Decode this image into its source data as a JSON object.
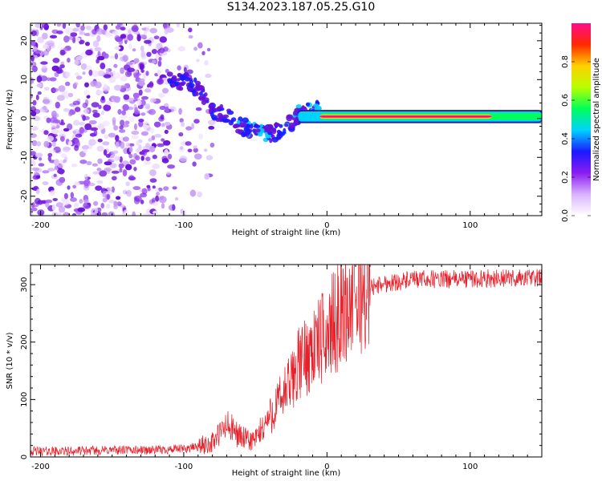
{
  "title": "S134.2023.187.05.25.G10",
  "chart_data": [
    {
      "type": "heatmap",
      "xlabel": "Height of straight line (km)",
      "ylabel": "Frequency (Hz)",
      "xlim": [
        -207,
        150
      ],
      "ylim": [
        -25,
        24.5
      ],
      "x_ticks": [
        -200,
        -100,
        0,
        100
      ],
      "y_ticks": [
        20,
        10,
        0,
        -10,
        -20
      ],
      "colorbar": {
        "label": "Normalized spectral amplitude",
        "range": [
          0,
          1
        ],
        "ticks": [
          0.0,
          0.2,
          0.4,
          0.6,
          0.8
        ],
        "colors": [
          "#ffffff",
          "#d9b3ff",
          "#8a1cf0",
          "#1a1aff",
          "#00d2ff",
          "#00ff5a",
          "#b8ff00",
          "#ffd000",
          "#ff2a00",
          "#ff0a8c"
        ]
      },
      "ridge": {
        "x": [
          -100,
          -90,
          -80,
          -70,
          -60,
          -50,
          -40,
          -30,
          -20,
          -10,
          0,
          20,
          50,
          100,
          150
        ],
        "freq_hz": [
          9.5,
          8,
          1.5,
          1,
          -2,
          -3,
          -4,
          -3,
          1,
          2,
          2,
          0.5,
          0.5,
          0.5,
          0.3
        ]
      }
    },
    {
      "type": "line",
      "xlabel": "Height of straight line (km)",
      "ylabel": "SNR (10 * v/v)",
      "xlim": [
        -207,
        150
      ],
      "ylim": [
        0,
        335
      ],
      "x_ticks": [
        -200,
        -100,
        0,
        100
      ],
      "y_ticks": [
        0,
        100,
        200,
        300
      ],
      "color": "#e8202a",
      "series": [
        {
          "x": [
            -207,
            -180,
            -150,
            -120,
            -100,
            -90,
            -80,
            -75,
            -70,
            -65,
            -60,
            -55,
            -50,
            -45,
            -40,
            -35,
            -30,
            -25,
            -20,
            -15,
            -10,
            -5,
            0,
            5,
            10,
            15,
            20,
            25,
            30,
            40,
            50,
            60,
            70,
            80,
            100,
            120,
            150
          ],
          "y": [
            10,
            10,
            12,
            12,
            14,
            18,
            25,
            40,
            55,
            45,
            35,
            28,
            30,
            50,
            70,
            90,
            110,
            130,
            160,
            175,
            190,
            200,
            215,
            235,
            250,
            265,
            275,
            285,
            295,
            302,
            305,
            308,
            310,
            309,
            310,
            311,
            312
          ]
        }
      ]
    }
  ]
}
